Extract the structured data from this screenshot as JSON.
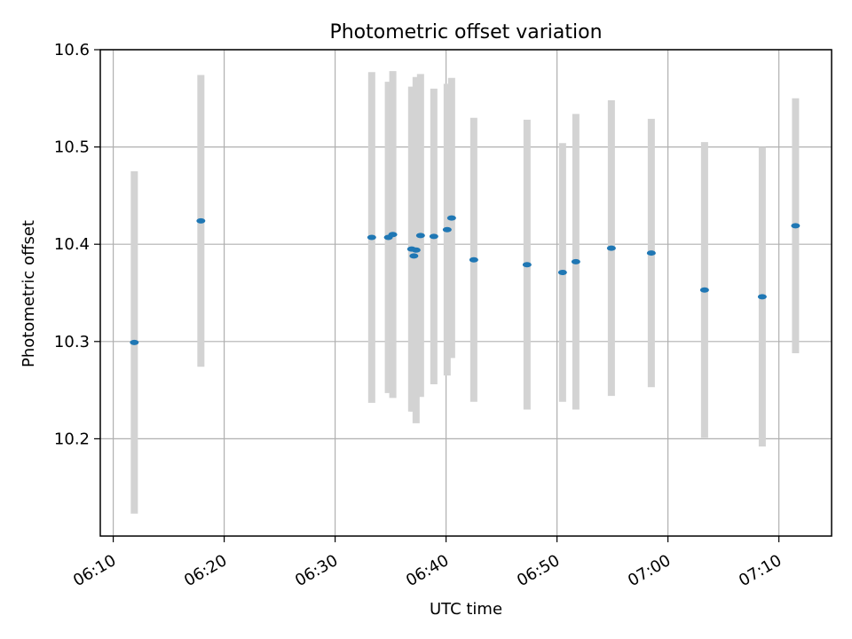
{
  "chart_data": {
    "type": "scatter",
    "title": "Photometric offset variation",
    "xlabel": "UTC time",
    "ylabel": "Photometric offset",
    "x_unit": "UTC time (HH:MM)",
    "xlim": [
      "06:08:50",
      "07:14:45"
    ],
    "ylim": [
      10.1,
      10.6
    ],
    "xticks": [
      "06:10",
      "06:20",
      "06:30",
      "06:40",
      "06:50",
      "07:00",
      "07:10"
    ],
    "yticks": [
      10.2,
      10.3,
      10.4,
      10.5,
      10.6
    ],
    "ytick_labels": [
      "10.2",
      "10.3",
      "10.4",
      "10.5",
      "10.6"
    ],
    "grid": true,
    "series": [
      {
        "errorbars": true,
        "points": [
          {
            "x": "06:11:54",
            "y": 10.299,
            "yerr": 0.176
          },
          {
            "x": "06:17:54",
            "y": 10.424,
            "yerr": 0.15
          },
          {
            "x": "06:33:18",
            "y": 10.407,
            "yerr": 0.17
          },
          {
            "x": "06:34:48",
            "y": 10.407,
            "yerr": 0.16
          },
          {
            "x": "06:35:12",
            "y": 10.41,
            "yerr": 0.168
          },
          {
            "x": "06:36:54",
            "y": 10.395,
            "yerr": 0.167
          },
          {
            "x": "06:37:06",
            "y": 10.388,
            "yerr": 0.16
          },
          {
            "x": "06:37:18",
            "y": 10.394,
            "yerr": 0.178
          },
          {
            "x": "06:37:42",
            "y": 10.409,
            "yerr": 0.166
          },
          {
            "x": "06:38:54",
            "y": 10.408,
            "yerr": 0.152
          },
          {
            "x": "06:40:06",
            "y": 10.415,
            "yerr": 0.15
          },
          {
            "x": "06:40:30",
            "y": 10.427,
            "yerr": 0.144
          },
          {
            "x": "06:42:30",
            "y": 10.384,
            "yerr": 0.146
          },
          {
            "x": "06:47:18",
            "y": 10.379,
            "yerr": 0.149
          },
          {
            "x": "06:50:30",
            "y": 10.371,
            "yerr": 0.133
          },
          {
            "x": "06:51:42",
            "y": 10.382,
            "yerr": 0.152
          },
          {
            "x": "06:54:54",
            "y": 10.396,
            "yerr": 0.152
          },
          {
            "x": "06:58:30",
            "y": 10.391,
            "yerr": 0.138
          },
          {
            "x": "07:03:18",
            "y": 10.353,
            "yerr": 0.152
          },
          {
            "x": "07:08:30",
            "y": 10.346,
            "yerr": 0.154
          },
          {
            "x": "07:11:30",
            "y": 10.419,
            "yerr": 0.131
          }
        ]
      }
    ],
    "colors": {
      "points": "#1f77b4",
      "errorbars": "#d3d3d3",
      "grid": "#b0b0b0",
      "axes": "#000000"
    }
  }
}
